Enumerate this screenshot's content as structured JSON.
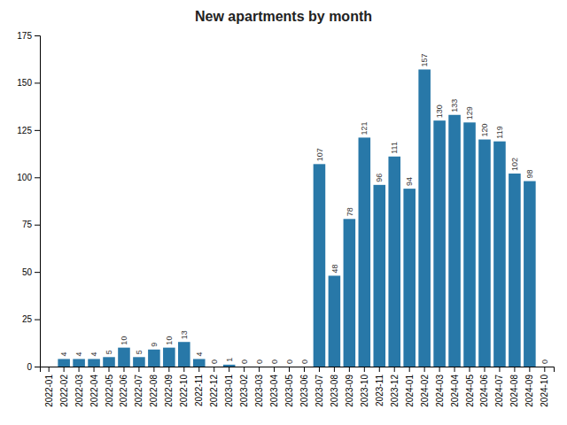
{
  "chart_data": {
    "type": "bar",
    "title": "New apartments by month",
    "categories": [
      "2022-01",
      "2022-02",
      "2022-03",
      "2022-04",
      "2022-05",
      "2022-06",
      "2022-07",
      "2022-08",
      "2022-09",
      "2022-10",
      "2022-11",
      "2022-12",
      "2023-01",
      "2023-02",
      "2023-03",
      "2023-04",
      "2023-05",
      "2023-06",
      "2023-07",
      "2023-08",
      "2023-09",
      "2023-10",
      "2023-11",
      "2023-12",
      "2024-01",
      "2024-02",
      "2024-03",
      "2024-04",
      "2024-05",
      "2024-06",
      "2024-07",
      "2024-08",
      "2024-09",
      "2024-10"
    ],
    "values": [
      0,
      4,
      4,
      4,
      5,
      10,
      5,
      9,
      10,
      13,
      4,
      0,
      1,
      0,
      0,
      0,
      0,
      0,
      107,
      48,
      78,
      121,
      96,
      111,
      94,
      157,
      130,
      133,
      129,
      120,
      119,
      102,
      98,
      0
    ],
    "value_labels": [
      null,
      "4",
      "4",
      "4",
      "5",
      "10",
      "5",
      "9",
      "10",
      "13",
      "4",
      "0",
      "1",
      "0",
      "0",
      "0",
      "0",
      "0",
      "107",
      "48",
      "78",
      "121",
      "96",
      "111",
      "94",
      "157",
      "130",
      "133",
      "129",
      "120",
      "119",
      "102",
      "98",
      "0"
    ],
    "data_labels": true,
    "color": "#2878a8",
    "ylim": [
      0,
      175
    ],
    "yticks": [
      0,
      25,
      50,
      75,
      100,
      125,
      150,
      175
    ],
    "grid": false
  }
}
